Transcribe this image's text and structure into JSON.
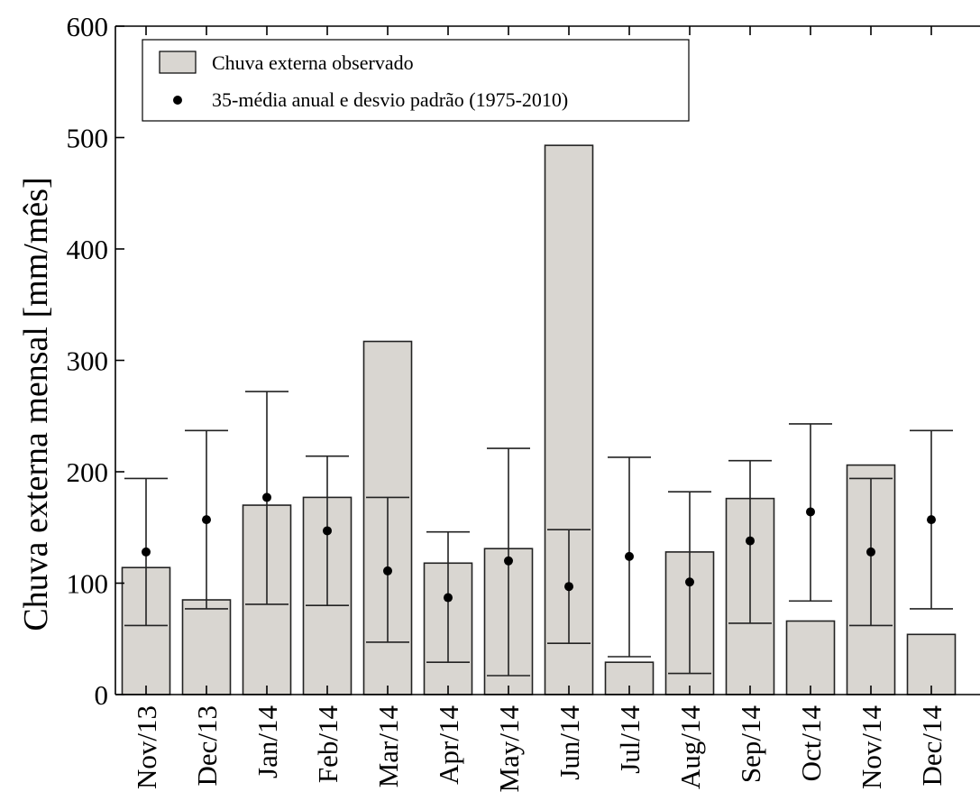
{
  "chart_data": {
    "type": "bar",
    "title": "",
    "xlabel": "",
    "ylabel": "Chuva externa mensal [mm/mês]",
    "ylim": [
      0,
      600
    ],
    "yticks": [
      0,
      100,
      200,
      300,
      400,
      500,
      600
    ],
    "grid": false,
    "legend_position": "top-left",
    "categories": [
      "Nov/13",
      "Dec/13",
      "Jan/14",
      "Feb/14",
      "Mar/14",
      "Apr/14",
      "May/14",
      "Jun/14",
      "Jul/14",
      "Aug/14",
      "Sep/14",
      "Oct/14",
      "Nov/14",
      "Dec/14"
    ],
    "series": [
      {
        "name": "Chuva externa observado",
        "kind": "bar",
        "color": "#d9d6d1",
        "values": [
          114,
          85,
          170,
          177,
          317,
          118,
          131,
          493,
          29,
          128,
          176,
          66,
          206,
          54
        ]
      },
      {
        "name": "35-média anual e desvio padrão (1975-2010)",
        "kind": "point-errorbar",
        "color": "#000000",
        "values": [
          128,
          157,
          177,
          147,
          111,
          87,
          120,
          97,
          124,
          101,
          138,
          164,
          128,
          157
        ],
        "error_low": [
          62,
          77,
          81,
          80,
          47,
          29,
          17,
          46,
          34,
          19,
          64,
          84,
          62,
          77
        ],
        "error_high": [
          194,
          237,
          272,
          214,
          177,
          146,
          221,
          148,
          213,
          182,
          210,
          243,
          194,
          237
        ]
      }
    ]
  }
}
